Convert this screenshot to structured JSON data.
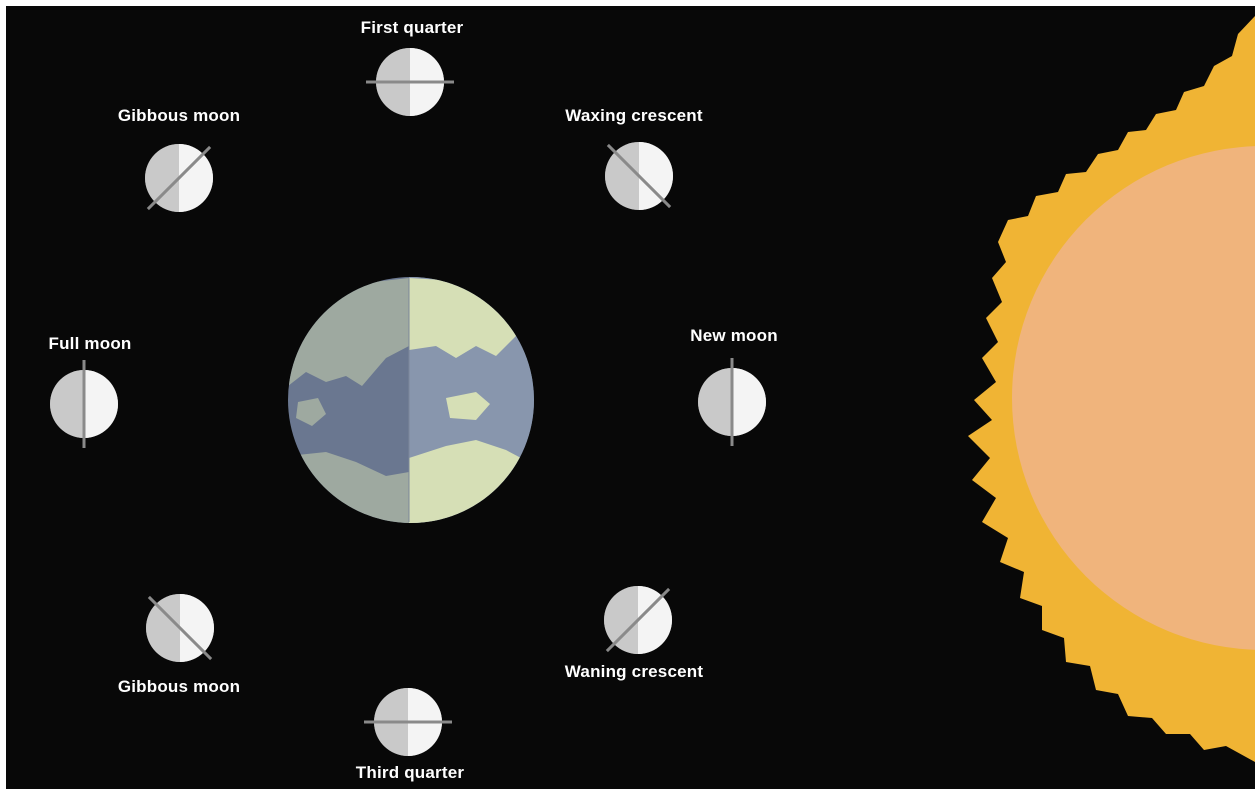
{
  "moon_phases": [
    {
      "label": "First quarter"
    },
    {
      "label": "Waxing crescent"
    },
    {
      "label": "Gibbous moon"
    },
    {
      "label": "Full moon"
    },
    {
      "label": "New moon"
    },
    {
      "label": "Gibbous moon"
    },
    {
      "label": "Waning crescent"
    },
    {
      "label": "Third quarter"
    }
  ],
  "colors": {
    "background": "#080808",
    "sun_corona": "#f0b434",
    "sun_body": "#f0b47c",
    "earth_ocean_dark": "#6a7790",
    "earth_ocean_light": "#8896ad",
    "earth_land_dark": "#9ea9a0",
    "earth_land_light": "#d6dfb6",
    "moon_dark": "#bcbcbc",
    "moon_light": "#f4f4f4"
  }
}
